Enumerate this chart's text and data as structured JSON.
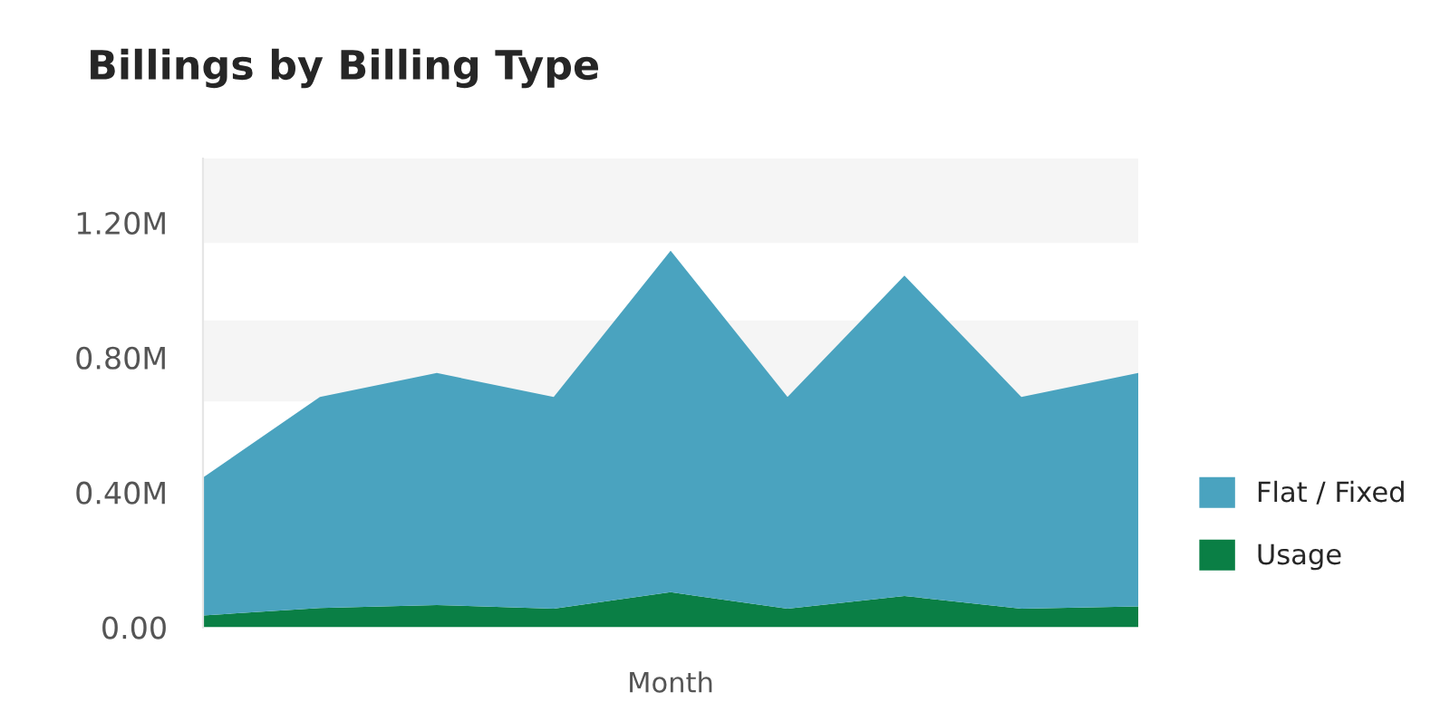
{
  "chart_data": {
    "type": "area",
    "title": "Billings by Billing Type",
    "xlabel": "Month",
    "stacked": true,
    "categories": [
      null,
      null,
      null,
      null,
      null,
      null,
      null,
      null,
      null
    ],
    "bands": [
      {
        "axis": "y",
        "from": 0.23,
        "to": 0.45,
        "color": "#f5f5f5"
      },
      {
        "axis": "y",
        "from": 0.67,
        "to": 0.91,
        "color": "#f5f5f5"
      },
      {
        "axis": "y",
        "from": 1.14,
        "to": 1.39,
        "color": "#f5f5f5"
      }
    ],
    "ylim": [
      0,
      1.39
    ],
    "yticks": [
      {
        "value": 0,
        "label": "0.00"
      },
      {
        "value": 0.4,
        "label": "0.40M"
      },
      {
        "value": 0.8,
        "label": "0.80M"
      },
      {
        "value": 1.2,
        "label": "1.20M"
      }
    ],
    "series": [
      {
        "name": "Usage",
        "color": "#0a7f45",
        "values": [
          0.035,
          0.057,
          0.066,
          0.055,
          0.104,
          0.055,
          0.093,
          0.055,
          0.062
        ]
      },
      {
        "name": "Flat / Fixed",
        "color": "#4aa3bf",
        "values": [
          0.409,
          0.626,
          0.688,
          0.628,
          1.013,
          0.628,
          0.95,
          0.628,
          0.692
        ]
      }
    ],
    "grid": false,
    "legend": "right"
  }
}
